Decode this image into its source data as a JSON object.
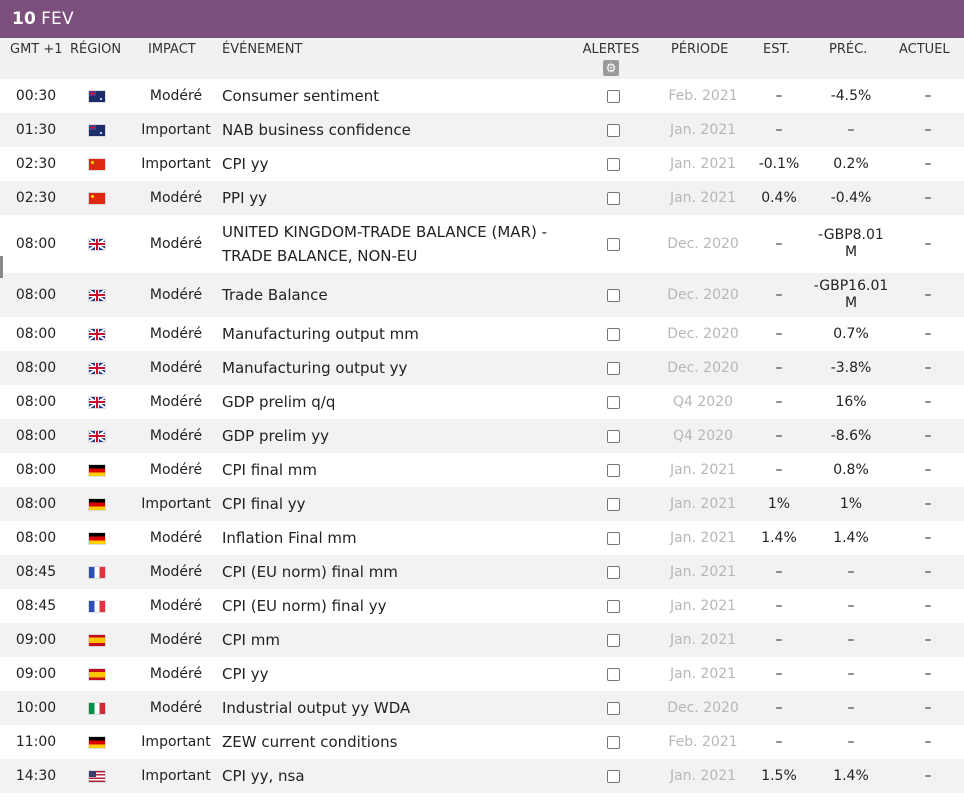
{
  "header": {
    "day": "10",
    "month": "FEV"
  },
  "columns": {
    "time": "GMT +1",
    "region": "RÉGION",
    "impact": "IMPACT",
    "event": "ÉVÉNEMENT",
    "alerts": "ALERTES",
    "period": "PÉRIODE",
    "est": "EST.",
    "prec": "PRÉC.",
    "actual": "ACTUEL"
  },
  "rows": [
    {
      "time": "00:30",
      "flag": "au",
      "icon": "australia-flag-icon",
      "impact": "Modéré",
      "event": "Consumer sentiment",
      "period": "Feb. 2021",
      "est": "–",
      "prec": "-4.5%",
      "actual": "–"
    },
    {
      "time": "01:30",
      "flag": "au",
      "icon": "australia-flag-icon",
      "impact": "Important",
      "event": "NAB business confidence",
      "period": "Jan. 2021",
      "est": "–",
      "prec": "–",
      "actual": "–"
    },
    {
      "time": "02:30",
      "flag": "cn",
      "icon": "china-flag-icon",
      "impact": "Important",
      "event": "CPI yy",
      "period": "Jan. 2021",
      "est": "-0.1%",
      "prec": "0.2%",
      "actual": "–"
    },
    {
      "time": "02:30",
      "flag": "cn",
      "icon": "china-flag-icon",
      "impact": "Modéré",
      "event": "PPI yy",
      "period": "Jan. 2021",
      "est": "0.4%",
      "prec": "-0.4%",
      "actual": "–"
    },
    {
      "time": "08:00",
      "flag": "gb",
      "icon": "uk-flag-icon",
      "impact": "Modéré",
      "event": "UNITED KINGDOM-TRADE BALANCE (MAR) - TRADE BALANCE, NON-EU",
      "period": "Dec. 2020",
      "est": "–",
      "prec": "-GBP8.01 M",
      "actual": "–"
    },
    {
      "time": "08:00",
      "flag": "gb",
      "icon": "uk-flag-icon",
      "impact": "Modéré",
      "event": "Trade Balance",
      "period": "Dec. 2020",
      "est": "–",
      "prec": "-GBP16.01 M",
      "actual": "–"
    },
    {
      "time": "08:00",
      "flag": "gb",
      "icon": "uk-flag-icon",
      "impact": "Modéré",
      "event": "Manufacturing output mm",
      "period": "Dec. 2020",
      "est": "–",
      "prec": "0.7%",
      "actual": "–"
    },
    {
      "time": "08:00",
      "flag": "gb",
      "icon": "uk-flag-icon",
      "impact": "Modéré",
      "event": "Manufacturing output yy",
      "period": "Dec. 2020",
      "est": "–",
      "prec": "-3.8%",
      "actual": "–"
    },
    {
      "time": "08:00",
      "flag": "gb",
      "icon": "uk-flag-icon",
      "impact": "Modéré",
      "event": "GDP prelim q/q",
      "period": "Q4 2020",
      "est": "–",
      "prec": "16%",
      "actual": "–"
    },
    {
      "time": "08:00",
      "flag": "gb",
      "icon": "uk-flag-icon",
      "impact": "Modéré",
      "event": "GDP prelim yy",
      "period": "Q4 2020",
      "est": "–",
      "prec": "-8.6%",
      "actual": "–"
    },
    {
      "time": "08:00",
      "flag": "de",
      "icon": "germany-flag-icon",
      "impact": "Modéré",
      "event": "CPI final mm",
      "period": "Jan. 2021",
      "est": "–",
      "prec": "0.8%",
      "actual": "–"
    },
    {
      "time": "08:00",
      "flag": "de",
      "icon": "germany-flag-icon",
      "impact": "Important",
      "event": "CPI final yy",
      "period": "Jan. 2021",
      "est": "1%",
      "prec": "1%",
      "actual": "–"
    },
    {
      "time": "08:00",
      "flag": "de",
      "icon": "germany-flag-icon",
      "impact": "Modéré",
      "event": "Inflation Final mm",
      "period": "Jan. 2021",
      "est": "1.4%",
      "prec": "1.4%",
      "actual": "–"
    },
    {
      "time": "08:45",
      "flag": "fr",
      "icon": "france-flag-icon",
      "impact": "Modéré",
      "event": "CPI (EU norm) final mm",
      "period": "Jan. 2021",
      "est": "–",
      "prec": "–",
      "actual": "–"
    },
    {
      "time": "08:45",
      "flag": "fr",
      "icon": "france-flag-icon",
      "impact": "Modéré",
      "event": "CPI (EU norm) final yy",
      "period": "Jan. 2021",
      "est": "–",
      "prec": "–",
      "actual": "–"
    },
    {
      "time": "09:00",
      "flag": "es",
      "icon": "spain-flag-icon",
      "impact": "Modéré",
      "event": "CPI mm",
      "period": "Jan. 2021",
      "est": "–",
      "prec": "–",
      "actual": "–"
    },
    {
      "time": "09:00",
      "flag": "es",
      "icon": "spain-flag-icon",
      "impact": "Modéré",
      "event": "CPI yy",
      "period": "Jan. 2021",
      "est": "–",
      "prec": "–",
      "actual": "–"
    },
    {
      "time": "10:00",
      "flag": "it",
      "icon": "italy-flag-icon",
      "impact": "Modéré",
      "event": "Industrial output yy WDA",
      "period": "Dec. 2020",
      "est": "–",
      "prec": "–",
      "actual": "–"
    },
    {
      "time": "11:00",
      "flag": "de",
      "icon": "germany-flag-icon",
      "impact": "Important",
      "event": "ZEW current conditions",
      "period": "Feb. 2021",
      "est": "–",
      "prec": "–",
      "actual": "–"
    },
    {
      "time": "14:30",
      "flag": "us",
      "icon": "usa-flag-icon",
      "impact": "Important",
      "event": "CPI yy, nsa",
      "period": "Jan. 2021",
      "est": "1.5%",
      "prec": "1.4%",
      "actual": "–"
    }
  ],
  "colors": {
    "header_bg": "#7d4f7c",
    "period_text": "#b7b7b7",
    "stripe": "#f2f2f2"
  }
}
